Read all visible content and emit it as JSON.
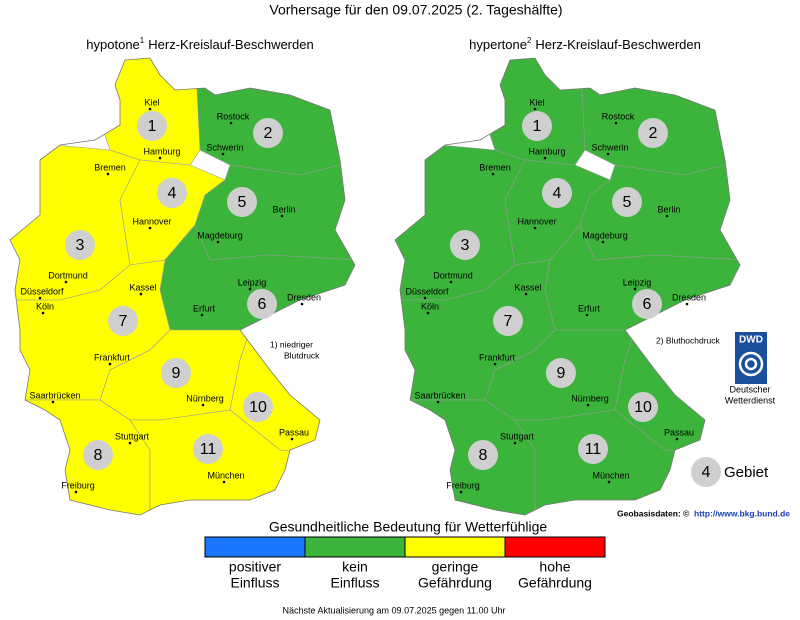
{
  "title": "Vorhersage für den 09.07.2025 (2. Tageshälfte)",
  "maps": [
    {
      "title": {
        "prefix": "hypotone",
        "sup": "1",
        "suffix": "Herz-Kreislauf-Beschwerden"
      },
      "footnote": [
        "1) niedriger",
        "Blutdruck"
      ],
      "region_colors": [
        "#ffff00",
        "#3cb43c",
        "#ffff00",
        "#ffff00",
        "#3cb43c",
        "#3cb43c",
        "#ffff00",
        "#ffff00",
        "#ffff00",
        "#ffff00",
        "#ffff00"
      ]
    },
    {
      "title": {
        "prefix": "hypertone",
        "sup": "2",
        "suffix": "Herz-Kreislauf-Beschwerden"
      },
      "footnote": [
        "2) Bluthochdruck"
      ],
      "region_colors": [
        "#3cb43c",
        "#3cb43c",
        "#3cb43c",
        "#3cb43c",
        "#3cb43c",
        "#3cb43c",
        "#3cb43c",
        "#3cb43c",
        "#3cb43c",
        "#3cb43c",
        "#3cb43c"
      ]
    }
  ],
  "regions": [
    "1",
    "2",
    "3",
    "4",
    "5",
    "6",
    "7",
    "8",
    "9",
    "10",
    "11"
  ],
  "cities": [
    "Kiel",
    "Hamburg",
    "Rostock",
    "Schwerin",
    "Bremen",
    "Hannover",
    "Berlin",
    "Magdeburg",
    "Dortmund",
    "Düsseldorf",
    "Köln",
    "Kassel",
    "Leipzig",
    "Dresden",
    "Erfurt",
    "Frankfurt",
    "Saarbrücken",
    "Nürnberg",
    "Passau",
    "Stuttgart",
    "Freiburg",
    "München"
  ],
  "legend": {
    "title": "Gesundheitliche Bedeutung für Wetterfühlige",
    "items": [
      {
        "color": "#1a75ff",
        "label": [
          "positiver",
          "Einfluss"
        ]
      },
      {
        "color": "#3cb43c",
        "label": [
          "kein",
          "Einfluss"
        ]
      },
      {
        "color": "#ffff00",
        "label": [
          "geringe",
          "Gefährdung"
        ]
      },
      {
        "color": "#ff0000",
        "label": [
          "hohe",
          "Gefährdung"
        ]
      }
    ]
  },
  "key": {
    "number": "4",
    "label": "Gebiet"
  },
  "logo": {
    "text": "DWD",
    "lines": [
      "Deutscher",
      "Wetterdienst"
    ]
  },
  "source": {
    "label": "Geobasisdaten: ©",
    "link": "http://www.bkg.bund.de"
  },
  "footer": "Nächste Aktualisierung am 09.07.2025 gegen 11.00 Uhr"
}
